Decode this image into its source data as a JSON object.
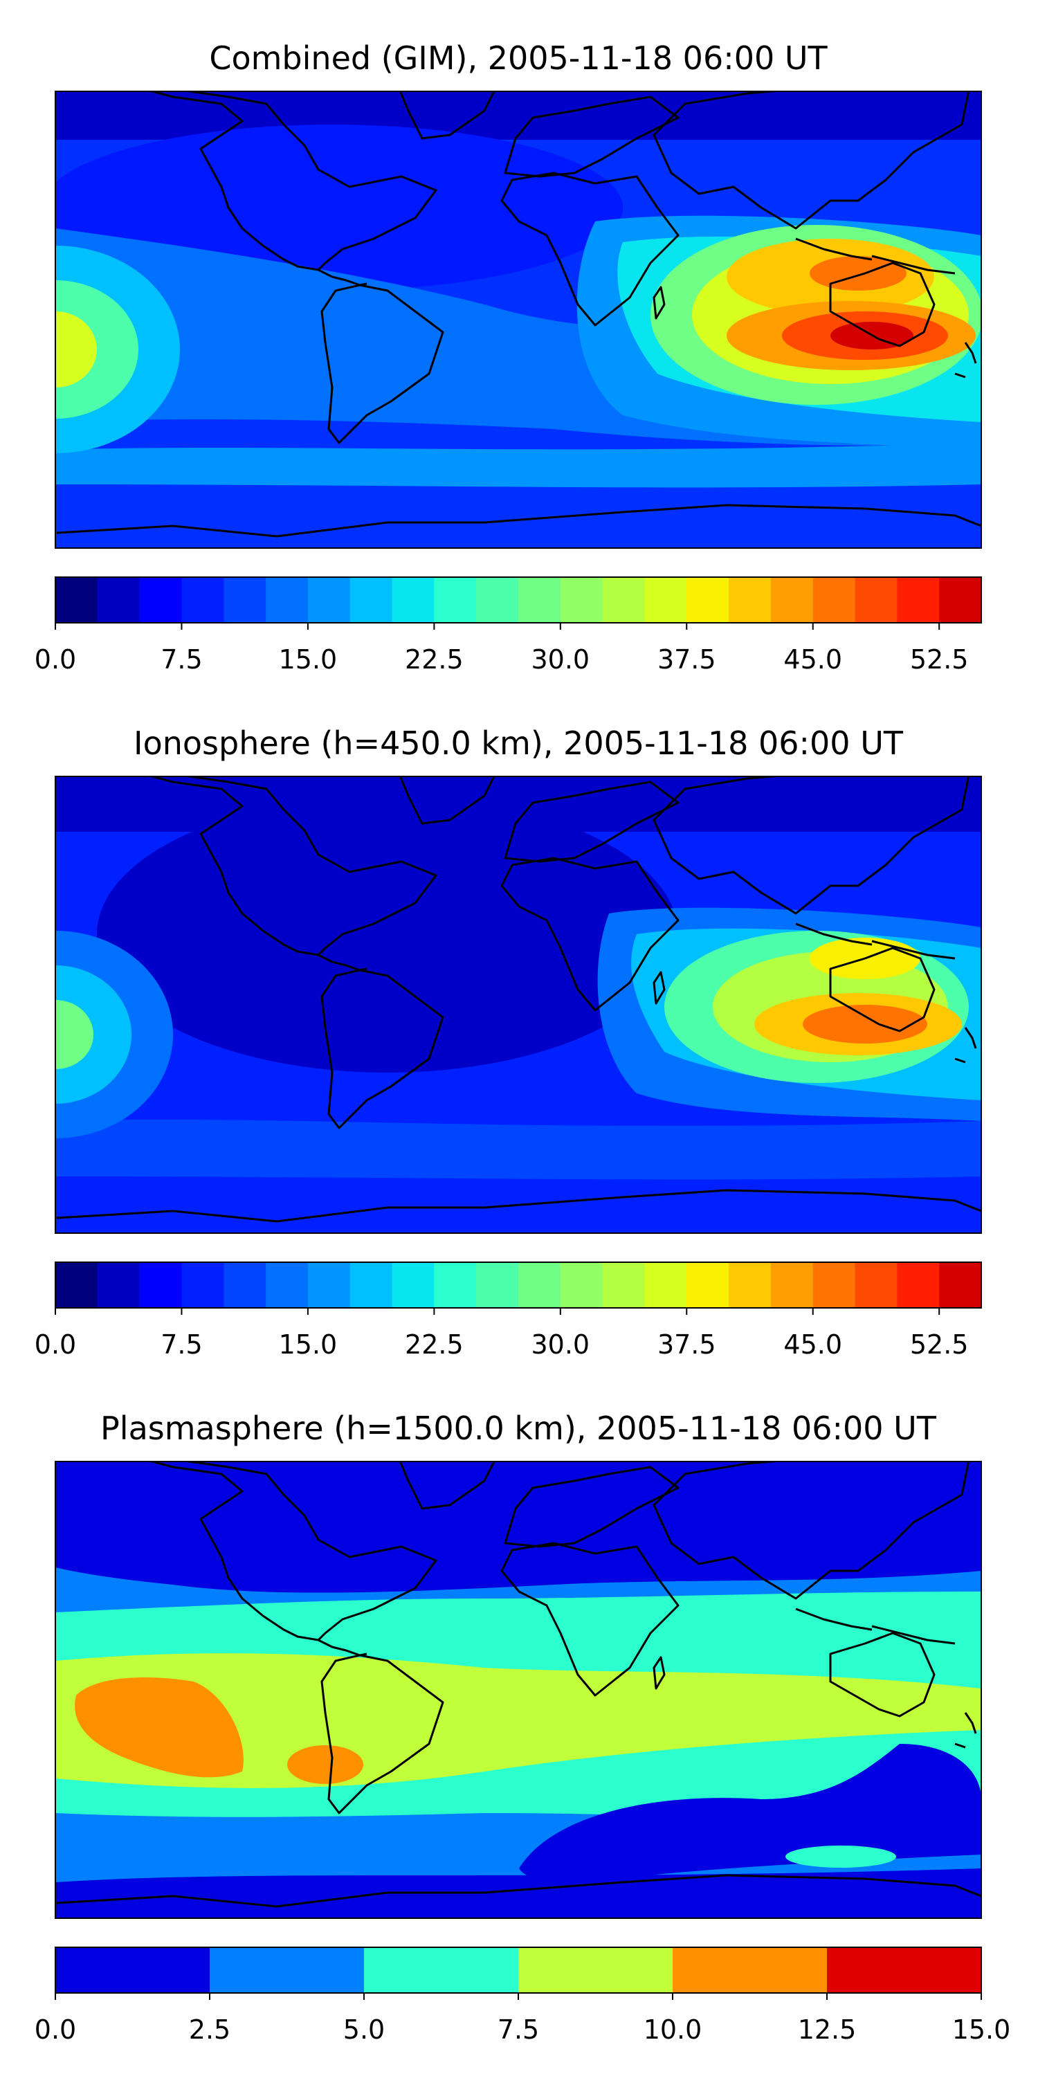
{
  "figure": {
    "layout": "three stacked global contour maps, each with a horizontal colorbar below"
  },
  "chart_data": [
    {
      "type": "heatmap",
      "title": "Combined (GIM), 2005-11-18 06:00 UT",
      "quantity": "total electron content",
      "map": "world, equirectangular, coastlines in black",
      "colorbar": {
        "cmap": "jet",
        "levels": [
          0.0,
          2.5,
          5.0,
          7.5,
          10.0,
          12.5,
          15.0,
          17.5,
          20.0,
          22.5,
          25.0,
          27.5,
          30.0,
          32.5,
          35.0,
          37.5,
          40.0,
          42.5,
          45.0,
          47.5,
          50.0,
          52.5,
          55.0
        ],
        "tick_values": [
          0.0,
          7.5,
          15.0,
          22.5,
          30.0,
          37.5,
          45.0,
          52.5
        ],
        "tick_labels": [
          "0.0",
          "7.5",
          "15.0",
          "22.5",
          "30.0",
          "37.5",
          "45.0",
          "52.5"
        ],
        "colors": [
          "#00007f",
          "#0000c0",
          "#0000ff",
          "#0020ff",
          "#0045ff",
          "#0070ff",
          "#0095ff",
          "#00c0ff",
          "#08e5ee",
          "#2affcd",
          "#4dffaa",
          "#6fff87",
          "#92ff64",
          "#b4ff42",
          "#d7ff1f",
          "#f9f000",
          "#ffc800",
          "#ff9e00",
          "#ff7400",
          "#ff4a00",
          "#ff1e00",
          "#d40000",
          "#8f0000"
        ]
      },
      "features": [
        {
          "name": "main peak",
          "lon": 125,
          "lat": -8,
          "value": 54
        },
        {
          "name": "north crest",
          "lon": 100,
          "lat": 15,
          "value": 44
        },
        {
          "name": "west edge",
          "lon": -178,
          "lat": 0,
          "value": 32
        },
        {
          "name": "africa band",
          "lon": 55,
          "lat": -5,
          "value": 25
        }
      ]
    },
    {
      "type": "heatmap",
      "title": "Ionosphere  (h=450.0 km), 2005-11-18 06:00 UT",
      "quantity": "total electron content",
      "map": "world, equirectangular, coastlines in black",
      "colorbar": {
        "cmap": "jet",
        "levels": [
          0.0,
          2.5,
          5.0,
          7.5,
          10.0,
          12.5,
          15.0,
          17.5,
          20.0,
          22.5,
          25.0,
          27.5,
          30.0,
          32.5,
          35.0,
          37.5,
          40.0,
          42.5,
          45.0,
          47.5,
          50.0,
          52.5,
          55.0
        ],
        "tick_values": [
          0.0,
          7.5,
          15.0,
          22.5,
          30.0,
          37.5,
          45.0,
          52.5
        ],
        "tick_labels": [
          "0.0",
          "7.5",
          "15.0",
          "22.5",
          "30.0",
          "37.5",
          "45.0",
          "52.5"
        ],
        "colors": [
          "#00007f",
          "#0000c0",
          "#0000ff",
          "#0020ff",
          "#0045ff",
          "#0070ff",
          "#0095ff",
          "#00c0ff",
          "#08e5ee",
          "#2affcd",
          "#4dffaa",
          "#6fff87",
          "#92ff64",
          "#b4ff42",
          "#d7ff1f",
          "#f9f000",
          "#ffc800",
          "#ff9e00",
          "#ff7400",
          "#ff4a00",
          "#ff1e00",
          "#d40000",
          "#8f0000"
        ]
      },
      "features": [
        {
          "name": "main peak",
          "lon": 125,
          "lat": -8,
          "value": 46
        },
        {
          "name": "north crest",
          "lon": 110,
          "lat": 17,
          "value": 38
        },
        {
          "name": "west edge",
          "lon": -178,
          "lat": 0,
          "value": 25
        },
        {
          "name": "africa band",
          "lon": 55,
          "lat": -5,
          "value": 20
        }
      ]
    },
    {
      "type": "heatmap",
      "title": "Plasmasphere (h=1500.0 km), 2005-11-18 06:00 UT",
      "quantity": "total electron content",
      "map": "world, equirectangular, coastlines in black",
      "colorbar": {
        "cmap": "jet",
        "levels": [
          0.0,
          2.5,
          5.0,
          7.5,
          10.0,
          12.5,
          15.0
        ],
        "tick_values": [
          0.0,
          2.5,
          5.0,
          7.5,
          10.0,
          12.5,
          15.0
        ],
        "tick_labels": [
          "0.0",
          "2.5",
          "5.0",
          "7.5",
          "10.0",
          "12.5",
          "15.0"
        ],
        "colors": [
          "#0000e0",
          "#0080ff",
          "#2affcd",
          "#c0ff3a",
          "#ff9000",
          "#e00000"
        ]
      },
      "features": [
        {
          "name": "pacific max",
          "lon": -150,
          "lat": 5,
          "value": 11
        },
        {
          "name": "south america max",
          "lon": -80,
          "lat": -8,
          "value": 10.5
        },
        {
          "name": "south pacific min",
          "lon": 30,
          "lat": -45,
          "value": 1.5
        },
        {
          "name": "australia min",
          "lon": 130,
          "lat": -25,
          "value": 2
        }
      ]
    }
  ]
}
